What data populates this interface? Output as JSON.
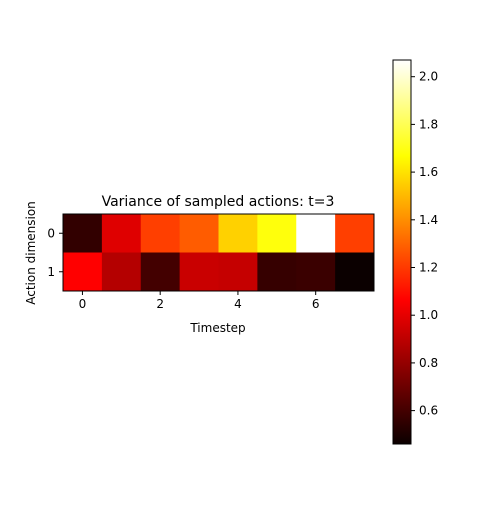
{
  "chart_data": {
    "type": "heatmap",
    "title": "Variance of sampled actions: t=3",
    "xlabel": "Timestep",
    "ylabel": "Action dimension",
    "x_categories": [
      0,
      1,
      2,
      3,
      4,
      5,
      6,
      7
    ],
    "y_categories": [
      0,
      1
    ],
    "x_tick_labels": [
      "0",
      "2",
      "4",
      "6"
    ],
    "y_tick_labels": [
      "0",
      "1"
    ],
    "values": [
      [
        0.55,
        0.95,
        1.2,
        1.27,
        1.55,
        1.68,
        2.07,
        1.2
      ],
      [
        1.04,
        0.85,
        0.59,
        0.9,
        0.89,
        0.56,
        0.57,
        0.46
      ]
    ],
    "colormap": "hot",
    "vmin": 0.46,
    "vmax": 2.07,
    "colorbar_ticks": [
      "0.6",
      "0.8",
      "1.0",
      "1.2",
      "1.4",
      "1.6",
      "1.8",
      "2.0"
    ]
  }
}
